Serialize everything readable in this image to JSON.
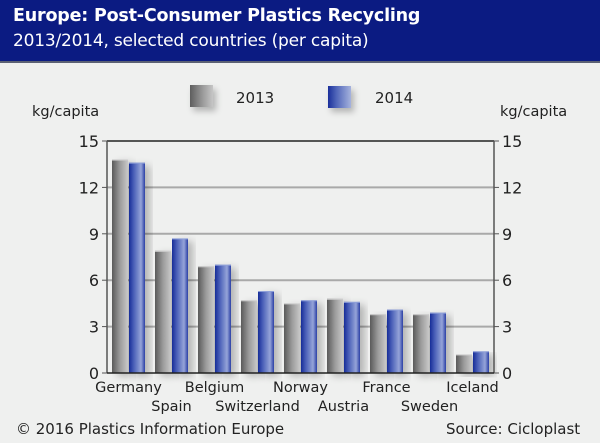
{
  "header": {
    "title": "Europe: Post-Consumer Plastics Recycling",
    "subtitle": "2013/2014, selected countries (per capita)"
  },
  "legend": {
    "items": [
      {
        "label": "2013",
        "color": "#8a8a8a"
      },
      {
        "label": "2014",
        "color": "#2a3fa5"
      }
    ]
  },
  "axis": {
    "left_unit": "kg/capita",
    "right_unit": "kg/capita"
  },
  "footer": {
    "copyright": "© 2016 Plastics Information Europe",
    "source": "Source: Cicloplast"
  },
  "colors": {
    "header_bg": "#0b1b82",
    "bar_2013": "#8a8a8a",
    "bar_2014": "#2a3fa5",
    "background": "#eff0ef"
  },
  "chart_data": {
    "type": "bar",
    "title": "Europe: Post-Consumer Plastics Recycling",
    "subtitle": "2013/2014, selected countries (per capita)",
    "xlabel": "",
    "ylabel": "kg/capita",
    "ylabel_right": "kg/capita",
    "ylim": [
      0,
      15
    ],
    "yticks": [
      0,
      3,
      6,
      9,
      12,
      15
    ],
    "grid": true,
    "legend_position": "top-center",
    "categories": [
      "Germany",
      "Spain",
      "Belgium",
      "Switzerland",
      "Norway",
      "Austria",
      "France",
      "Sweden",
      "Iceland"
    ],
    "series": [
      {
        "name": "2013",
        "values": [
          13.8,
          7.9,
          6.9,
          4.7,
          4.5,
          4.8,
          3.8,
          3.8,
          1.2
        ]
      },
      {
        "name": "2014",
        "values": [
          13.6,
          8.7,
          7.0,
          5.3,
          4.7,
          4.6,
          4.1,
          3.9,
          1.4
        ]
      }
    ]
  }
}
